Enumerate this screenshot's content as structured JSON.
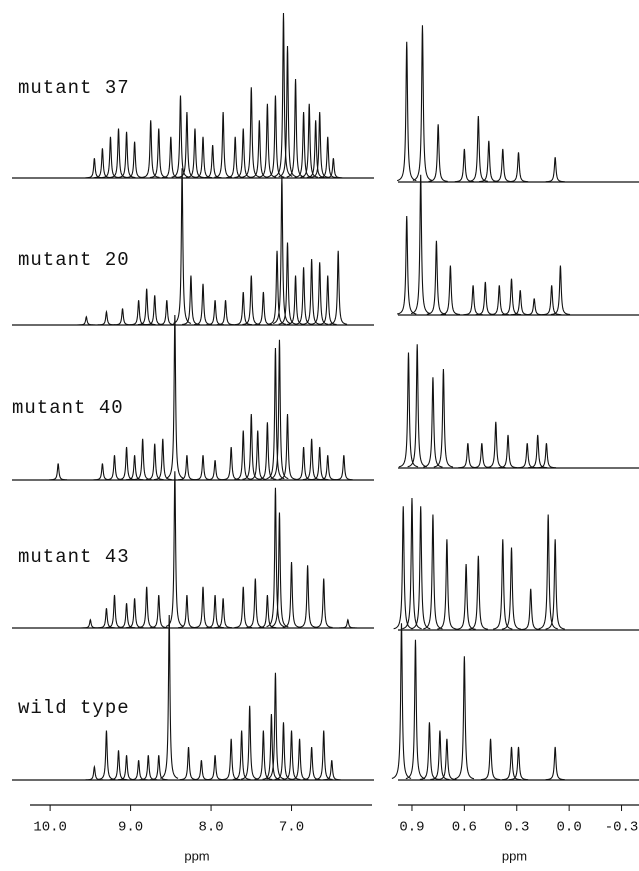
{
  "chart_data": [
    {
      "type": "spectrum",
      "xlabel": "ppm",
      "xlim": [
        10.25,
        6.0
      ],
      "xticks": [
        {
          "value": 10,
          "label": "10.0"
        },
        {
          "value": 9,
          "label": "9.0"
        },
        {
          "value": 8,
          "label": "8.0"
        },
        {
          "value": 7,
          "label": "7.0"
        }
      ],
      "color": "#111",
      "series": [
        {
          "name": "mutant 37",
          "x": [
            9.45,
            9.35,
            9.25,
            9.15,
            9.05,
            8.95,
            8.75,
            8.65,
            8.5,
            8.38,
            8.3,
            8.2,
            8.1,
            7.98,
            7.85,
            7.7,
            7.6,
            7.5,
            7.4,
            7.3,
            7.2,
            7.1,
            7.05,
            6.95,
            6.85,
            6.78,
            6.7,
            6.65,
            6.55,
            6.48
          ],
          "values": [
            12,
            18,
            25,
            30,
            28,
            22,
            35,
            30,
            25,
            50,
            40,
            30,
            25,
            20,
            40,
            25,
            30,
            55,
            35,
            45,
            50,
            100,
            80,
            60,
            40,
            45,
            35,
            40,
            25,
            12
          ]
        },
        {
          "name": "mutant 20",
          "x": [
            9.55,
            9.3,
            9.1,
            8.9,
            8.8,
            8.7,
            8.55,
            8.36,
            8.25,
            8.1,
            7.95,
            7.82,
            7.6,
            7.5,
            7.35,
            7.18,
            7.12,
            7.05,
            6.95,
            6.85,
            6.75,
            6.65,
            6.55,
            6.42
          ],
          "values": [
            5,
            8,
            10,
            15,
            22,
            18,
            15,
            95,
            30,
            25,
            15,
            15,
            20,
            30,
            20,
            45,
            90,
            50,
            30,
            35,
            40,
            38,
            30,
            45
          ]
        },
        {
          "name": "mutant 40",
          "x": [
            9.9,
            9.35,
            9.2,
            9.05,
            8.95,
            8.85,
            8.7,
            8.6,
            8.45,
            8.3,
            8.1,
            7.95,
            7.75,
            7.6,
            7.5,
            7.42,
            7.3,
            7.2,
            7.15,
            7.05,
            6.85,
            6.75,
            6.65,
            6.55,
            6.35
          ],
          "values": [
            10,
            10,
            15,
            20,
            15,
            25,
            22,
            25,
            100,
            15,
            15,
            12,
            20,
            30,
            40,
            30,
            35,
            80,
            85,
            40,
            20,
            25,
            20,
            15,
            15
          ]
        },
        {
          "name": "mutant 43",
          "x": [
            9.5,
            9.3,
            9.2,
            9.05,
            8.95,
            8.8,
            8.65,
            8.45,
            8.3,
            8.1,
            7.95,
            7.85,
            7.6,
            7.45,
            7.3,
            7.2,
            7.15,
            7.0,
            6.8,
            6.6,
            6.3
          ],
          "values": [
            5,
            12,
            20,
            15,
            18,
            25,
            20,
            95,
            20,
            25,
            20,
            18,
            25,
            30,
            20,
            85,
            70,
            40,
            38,
            30,
            5
          ]
        },
        {
          "name": "wild type",
          "x": [
            9.45,
            9.3,
            9.15,
            9.05,
            8.9,
            8.78,
            8.65,
            8.52,
            8.28,
            8.12,
            7.95,
            7.75,
            7.62,
            7.52,
            7.35,
            7.25,
            7.2,
            7.1,
            7.0,
            6.9,
            6.75,
            6.6,
            6.5
          ],
          "values": [
            8,
            30,
            18,
            15,
            12,
            15,
            15,
            100,
            20,
            12,
            15,
            25,
            30,
            45,
            30,
            40,
            65,
            35,
            30,
            25,
            20,
            30,
            12
          ]
        }
      ]
    },
    {
      "type": "spectrum",
      "xlabel": "ppm",
      "xlim": [
        0.98,
        -0.4
      ],
      "xticks": [
        0.9,
        0.6,
        0.3,
        {
          "value": 0,
          "label": "0.0"
        },
        -0.3
      ],
      "color": "#111",
      "series": [
        {
          "x": [
            0.93,
            0.84,
            0.75,
            0.6,
            0.52,
            0.46,
            0.38,
            0.29,
            0.08
          ],
          "values": [
            85,
            95,
            35,
            20,
            40,
            25,
            20,
            18,
            15
          ]
        },
        {
          "x": [
            0.93,
            0.85,
            0.76,
            0.68,
            0.55,
            0.48,
            0.4,
            0.33,
            0.28,
            0.2,
            0.1,
            0.05
          ],
          "values": [
            60,
            85,
            45,
            30,
            18,
            20,
            18,
            22,
            15,
            10,
            18,
            30
          ]
        },
        {
          "x": [
            0.92,
            0.87,
            0.78,
            0.72,
            0.58,
            0.5,
            0.42,
            0.35,
            0.24,
            0.18,
            0.13
          ],
          "values": [
            70,
            75,
            55,
            60,
            15,
            15,
            28,
            20,
            15,
            20,
            15
          ]
        },
        {
          "x": [
            0.95,
            0.9,
            0.85,
            0.78,
            0.7,
            0.59,
            0.52,
            0.38,
            0.33,
            0.22,
            0.12,
            0.08
          ],
          "values": [
            75,
            80,
            75,
            70,
            55,
            40,
            45,
            55,
            50,
            25,
            70,
            55
          ]
        },
        {
          "x": [
            0.96,
            0.88,
            0.8,
            0.74,
            0.7,
            0.6,
            0.45,
            0.33,
            0.29,
            0.08
          ],
          "values": [
            95,
            85,
            35,
            30,
            25,
            75,
            25,
            20,
            20,
            20
          ]
        }
      ]
    }
  ]
}
